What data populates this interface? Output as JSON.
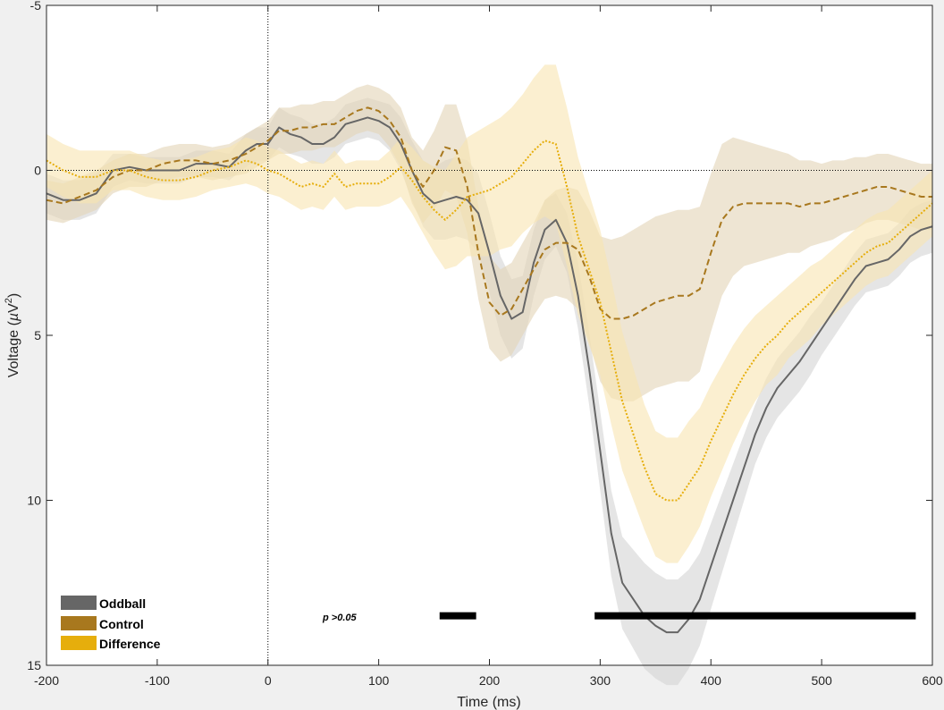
{
  "chart_data": {
    "type": "line",
    "xlabel": "Time (ms)",
    "ylabel": "Voltage (µV²)",
    "ylabel_main": "Voltage (",
    "ylabel_mu": "µ",
    "ylabel_unit": "V",
    "ylabel_sup": "2",
    "ylabel_close": ")",
    "xlim": [
      -200,
      600
    ],
    "ylim": [
      -5,
      15
    ],
    "y_reversed": true,
    "xticks": [
      -200,
      -100,
      0,
      100,
      200,
      300,
      400,
      500,
      600
    ],
    "yticks": [
      -5,
      0,
      5,
      10,
      15
    ],
    "grid": false,
    "legend_position": "bottom-left",
    "zero_lines": {
      "x": 0,
      "y": 0,
      "style": "dotted"
    },
    "annotation": "p >0.05",
    "significance_bars": [
      [
        155,
        188
      ],
      [
        295,
        585
      ]
    ],
    "series": [
      {
        "name": "Oddball",
        "color": "#666666",
        "band_color": "#d4d4d4",
        "line_style": "solid",
        "x": [
          -200,
          -185,
          -170,
          -155,
          -140,
          -125,
          -110,
          -95,
          -80,
          -65,
          -50,
          -35,
          -20,
          -10,
          0,
          10,
          20,
          30,
          40,
          50,
          60,
          70,
          80,
          90,
          100,
          110,
          120,
          130,
          140,
          150,
          160,
          170,
          180,
          190,
          200,
          210,
          220,
          230,
          240,
          250,
          260,
          270,
          280,
          290,
          300,
          310,
          320,
          330,
          340,
          350,
          360,
          370,
          380,
          390,
          400,
          410,
          420,
          430,
          440,
          450,
          460,
          470,
          480,
          490,
          500,
          510,
          520,
          530,
          540,
          550,
          560,
          570,
          580,
          590,
          600
        ],
        "y": [
          0.7,
          0.9,
          0.9,
          0.7,
          0.0,
          -0.1,
          0.0,
          0.0,
          0.0,
          -0.2,
          -0.2,
          -0.1,
          -0.6,
          -0.8,
          -0.8,
          -1.3,
          -1.1,
          -1.0,
          -0.8,
          -0.8,
          -1.0,
          -1.4,
          -1.5,
          -1.6,
          -1.5,
          -1.3,
          -0.8,
          0.0,
          0.7,
          1.0,
          0.9,
          0.8,
          0.9,
          1.3,
          2.5,
          3.8,
          4.5,
          4.3,
          2.8,
          1.8,
          1.5,
          2.2,
          3.8,
          6.0,
          8.5,
          11.0,
          12.5,
          13.0,
          13.5,
          13.8,
          14.0,
          14.0,
          13.6,
          13.0,
          12.0,
          11.0,
          10.0,
          9.0,
          8.0,
          7.2,
          6.6,
          6.2,
          5.8,
          5.3,
          4.8,
          4.3,
          3.8,
          3.3,
          2.9,
          2.8,
          2.7,
          2.4,
          2.0,
          1.8,
          1.7
        ],
        "band": [
          0.6,
          0.6,
          0.6,
          0.6,
          0.5,
          0.4,
          0.4,
          0.4,
          0.4,
          0.4,
          0.4,
          0.4,
          0.5,
          0.5,
          0.5,
          0.6,
          0.6,
          0.6,
          0.6,
          0.6,
          0.6,
          0.6,
          0.6,
          0.6,
          0.6,
          0.7,
          0.8,
          0.9,
          1.0,
          1.1,
          1.2,
          1.2,
          1.2,
          1.2,
          1.2,
          1.2,
          1.2,
          1.1,
          1.0,
          0.9,
          0.8,
          0.9,
          1.0,
          1.1,
          1.2,
          1.3,
          1.4,
          1.5,
          1.6,
          1.6,
          1.6,
          1.6,
          1.5,
          1.4,
          1.3,
          1.2,
          1.1,
          1.0,
          0.9,
          0.9,
          0.9,
          0.9,
          0.9,
          0.9,
          0.8,
          0.8,
          0.8,
          0.8,
          0.8,
          0.8,
          0.8,
          0.8,
          0.8,
          0.8,
          0.8
        ]
      },
      {
        "name": "Control",
        "color": "#a8781e",
        "band_color": "#e2d3b5",
        "line_style": "dashed",
        "x": [
          -200,
          -185,
          -170,
          -155,
          -140,
          -125,
          -110,
          -95,
          -80,
          -65,
          -50,
          -35,
          -20,
          -10,
          0,
          10,
          20,
          30,
          40,
          50,
          60,
          70,
          80,
          90,
          100,
          110,
          120,
          130,
          140,
          150,
          160,
          170,
          180,
          190,
          200,
          210,
          220,
          230,
          240,
          250,
          260,
          270,
          280,
          290,
          300,
          310,
          320,
          330,
          340,
          350,
          360,
          370,
          380,
          390,
          400,
          410,
          420,
          430,
          440,
          450,
          460,
          470,
          480,
          490,
          500,
          510,
          520,
          530,
          540,
          550,
          560,
          570,
          580,
          590,
          600
        ],
        "y": [
          0.9,
          1.0,
          0.8,
          0.6,
          0.2,
          0.0,
          0.0,
          -0.2,
          -0.3,
          -0.3,
          -0.2,
          -0.3,
          -0.5,
          -0.7,
          -0.9,
          -1.2,
          -1.2,
          -1.3,
          -1.3,
          -1.4,
          -1.4,
          -1.6,
          -1.8,
          -1.9,
          -1.8,
          -1.5,
          -1.0,
          0.0,
          0.5,
          0.0,
          -0.7,
          -0.6,
          0.5,
          2.5,
          4.0,
          4.4,
          4.2,
          3.6,
          3.0,
          2.4,
          2.2,
          2.2,
          2.4,
          3.2,
          4.2,
          4.5,
          4.5,
          4.4,
          4.2,
          4.0,
          3.9,
          3.8,
          3.8,
          3.6,
          2.5,
          1.5,
          1.1,
          1.0,
          1.0,
          1.0,
          1.0,
          1.0,
          1.1,
          1.0,
          1.0,
          0.9,
          0.8,
          0.7,
          0.6,
          0.5,
          0.5,
          0.6,
          0.7,
          0.8,
          0.8
        ],
        "band": [
          0.6,
          0.6,
          0.6,
          0.6,
          0.5,
          0.5,
          0.5,
          0.5,
          0.5,
          0.5,
          0.5,
          0.5,
          0.6,
          0.6,
          0.6,
          0.7,
          0.7,
          0.7,
          0.7,
          0.7,
          0.7,
          0.7,
          0.7,
          0.7,
          0.7,
          0.8,
          0.9,
          1.0,
          1.1,
          1.2,
          1.3,
          1.4,
          1.4,
          1.4,
          1.4,
          1.4,
          1.4,
          1.4,
          1.4,
          1.5,
          1.6,
          1.7,
          1.8,
          2.0,
          2.2,
          2.4,
          2.5,
          2.6,
          2.6,
          2.6,
          2.6,
          2.6,
          2.6,
          2.5,
          2.4,
          2.3,
          2.1,
          1.9,
          1.8,
          1.7,
          1.6,
          1.5,
          1.4,
          1.3,
          1.2,
          1.2,
          1.1,
          1.1,
          1.0,
          1.0,
          1.0,
          1.0,
          1.0,
          1.0,
          1.0
        ]
      },
      {
        "name": "Difference",
        "color": "#e6ae0c",
        "band_color": "#f8e4b0",
        "line_style": "dotted",
        "x": [
          -200,
          -185,
          -170,
          -155,
          -140,
          -125,
          -110,
          -95,
          -80,
          -65,
          -50,
          -35,
          -20,
          -10,
          0,
          10,
          20,
          30,
          40,
          50,
          60,
          70,
          80,
          90,
          100,
          110,
          120,
          130,
          140,
          150,
          160,
          170,
          180,
          190,
          200,
          210,
          220,
          230,
          240,
          250,
          260,
          270,
          280,
          290,
          300,
          310,
          320,
          330,
          340,
          350,
          360,
          370,
          380,
          390,
          400,
          410,
          420,
          430,
          440,
          450,
          460,
          470,
          480,
          490,
          500,
          510,
          520,
          530,
          540,
          550,
          560,
          570,
          580,
          590,
          600
        ],
        "y": [
          -0.3,
          0.0,
          0.2,
          0.2,
          0.0,
          0.0,
          0.2,
          0.3,
          0.3,
          0.2,
          0.0,
          -0.1,
          -0.3,
          -0.2,
          0.0,
          0.1,
          0.3,
          0.5,
          0.4,
          0.5,
          0.1,
          0.5,
          0.4,
          0.4,
          0.4,
          0.2,
          -0.1,
          0.3,
          0.8,
          1.2,
          1.5,
          1.2,
          0.8,
          0.7,
          0.6,
          0.4,
          0.2,
          -0.2,
          -0.6,
          -0.9,
          -0.8,
          0.5,
          2.0,
          3.0,
          4.0,
          5.5,
          7.0,
          8.0,
          9.0,
          9.8,
          10.0,
          10.0,
          9.5,
          9.0,
          8.2,
          7.5,
          6.8,
          6.2,
          5.7,
          5.3,
          5.0,
          4.6,
          4.3,
          4.0,
          3.7,
          3.4,
          3.1,
          2.8,
          2.5,
          2.3,
          2.2,
          1.9,
          1.6,
          1.3,
          1.0
        ],
        "band": [
          0.8,
          0.8,
          0.8,
          0.8,
          0.6,
          0.6,
          0.6,
          0.6,
          0.6,
          0.6,
          0.6,
          0.6,
          0.7,
          0.7,
          0.7,
          0.7,
          0.7,
          0.7,
          0.7,
          0.7,
          0.7,
          0.7,
          0.7,
          0.7,
          0.7,
          0.8,
          0.9,
          1.0,
          1.1,
          1.3,
          1.5,
          1.7,
          1.8,
          1.9,
          2.0,
          2.0,
          2.1,
          2.1,
          2.2,
          2.3,
          2.4,
          2.4,
          2.4,
          2.3,
          2.2,
          2.2,
          2.1,
          2.0,
          1.9,
          1.9,
          1.9,
          1.9,
          1.9,
          1.8,
          1.7,
          1.6,
          1.5,
          1.4,
          1.3,
          1.2,
          1.2,
          1.1,
          1.1,
          1.1,
          1.0,
          1.0,
          1.0,
          1.0,
          1.0,
          1.0,
          1.0,
          1.0,
          1.0,
          1.0,
          1.0
        ]
      }
    ]
  }
}
